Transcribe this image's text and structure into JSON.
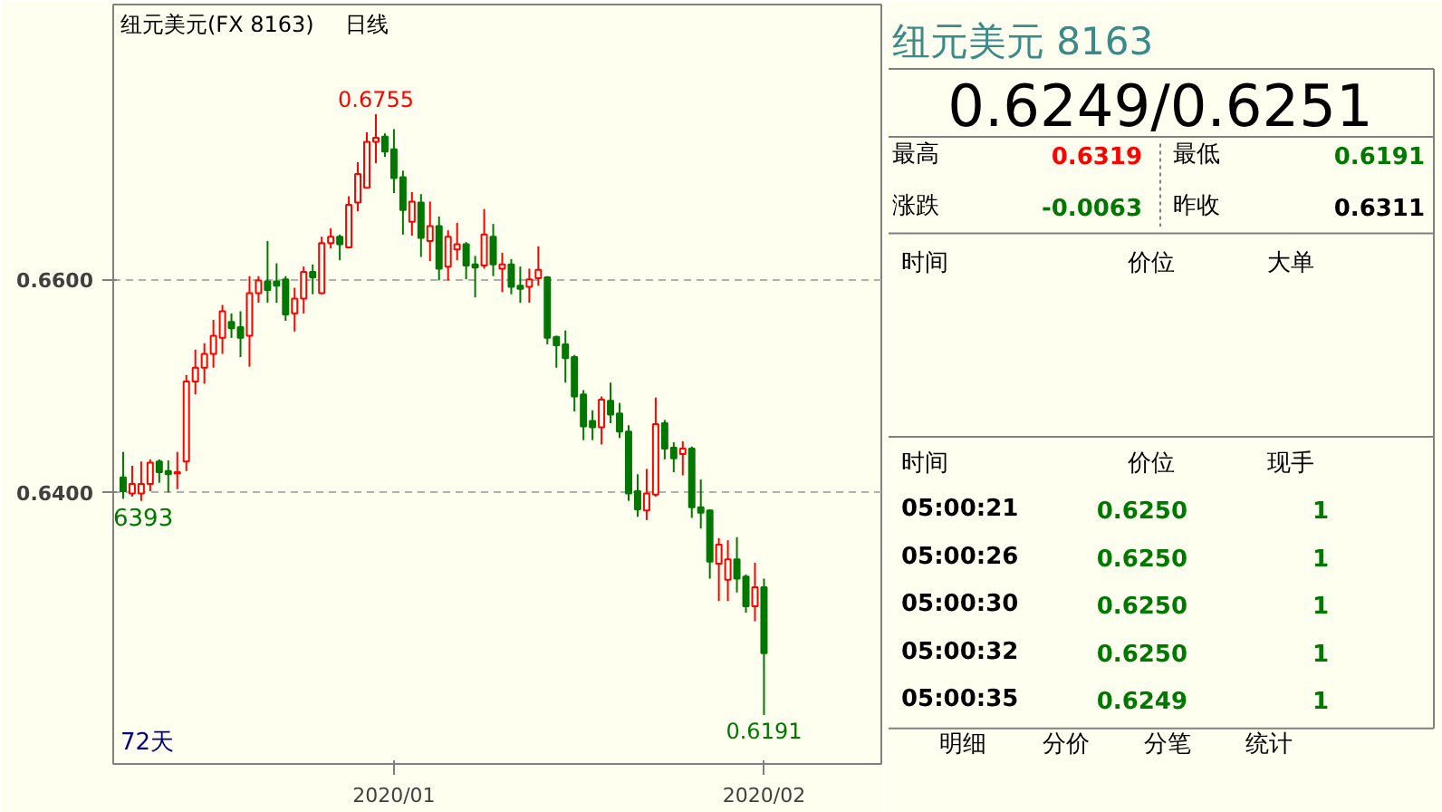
{
  "chart_data": [
    {
      "type": "candlestick",
      "title": "纽元美元(FX 8163)",
      "subtitle": "日线",
      "categories": [
        null,
        null,
        null,
        null,
        null,
        null,
        null,
        null,
        null,
        null,
        null,
        null,
        null,
        null,
        null,
        null,
        null,
        null,
        null,
        null,
        null,
        null,
        null,
        null,
        null,
        null,
        null,
        null,
        null,
        null,
        "2020/01",
        null,
        null,
        null,
        null,
        null,
        null,
        null,
        null,
        null,
        null,
        null,
        null,
        null,
        null,
        null,
        null,
        null,
        null,
        null,
        null,
        null,
        null,
        null,
        null,
        null,
        null,
        null,
        null,
        null,
        null,
        null,
        null,
        null,
        null,
        null,
        null,
        null,
        null,
        null,
        null,
        "2020/02"
      ],
      "ohlc": [
        [
          0.6414,
          0.6438,
          0.6394,
          0.6401
        ],
        [
          0.6399,
          0.6425,
          0.6396,
          0.6408
        ],
        [
          0.6399,
          0.6429,
          0.6392,
          0.6408
        ],
        [
          0.6408,
          0.6431,
          0.6401,
          0.6428
        ],
        [
          0.6429,
          0.6431,
          0.6409,
          0.6419
        ],
        [
          0.642,
          0.643,
          0.64,
          0.6417
        ],
        [
          0.6418,
          0.6438,
          0.6403,
          0.6419
        ],
        [
          0.6429,
          0.651,
          0.642,
          0.6504
        ],
        [
          0.6504,
          0.6534,
          0.6492,
          0.6517
        ],
        [
          0.6517,
          0.654,
          0.6502,
          0.653
        ],
        [
          0.653,
          0.6562,
          0.6517,
          0.6547
        ],
        [
          0.6545,
          0.6576,
          0.653,
          0.657
        ],
        [
          0.656,
          0.6568,
          0.6545,
          0.6554
        ],
        [
          0.6555,
          0.657,
          0.6527,
          0.6545
        ],
        [
          0.6547,
          0.6603,
          0.6518,
          0.6587
        ],
        [
          0.6587,
          0.6603,
          0.6578,
          0.6599
        ],
        [
          0.6598,
          0.6636,
          0.6578,
          0.659
        ],
        [
          0.6598,
          0.6615,
          0.6578,
          0.6594
        ],
        [
          0.66,
          0.6603,
          0.6561,
          0.6567
        ],
        [
          0.6568,
          0.6592,
          0.6551,
          0.6582
        ],
        [
          0.6582,
          0.6612,
          0.6568,
          0.6607
        ],
        [
          0.6607,
          0.6614,
          0.6586,
          0.6602
        ],
        [
          0.6587,
          0.664,
          0.6586,
          0.6634
        ],
        [
          0.6634,
          0.6648,
          0.6629,
          0.664
        ],
        [
          0.664,
          0.6642,
          0.6618,
          0.6633
        ],
        [
          0.663,
          0.6678,
          0.6629,
          0.667
        ],
        [
          0.6672,
          0.671,
          0.6664,
          0.6699
        ],
        [
          0.6686,
          0.6738,
          0.6686,
          0.6729
        ],
        [
          0.6729,
          0.6755,
          0.6709,
          0.6733
        ],
        [
          0.6734,
          0.6737,
          0.6715,
          0.672
        ],
        [
          0.6722,
          0.6741,
          0.6681,
          0.6695
        ],
        [
          0.6696,
          0.6702,
          0.6642,
          0.6665
        ],
        [
          0.6654,
          0.6682,
          0.6641,
          0.6673
        ],
        [
          0.6672,
          0.668,
          0.6621,
          0.6639
        ],
        [
          0.6636,
          0.6673,
          0.6617,
          0.665
        ],
        [
          0.665,
          0.6659,
          0.6599,
          0.661
        ],
        [
          0.6612,
          0.6646,
          0.6599,
          0.664
        ],
        [
          0.6628,
          0.6653,
          0.6618,
          0.6633
        ],
        [
          0.6633,
          0.6635,
          0.66,
          0.6613
        ],
        [
          0.6614,
          0.6622,
          0.6583,
          0.6611
        ],
        [
          0.6613,
          0.6666,
          0.661,
          0.6642
        ],
        [
          0.664,
          0.6652,
          0.6603,
          0.6614
        ],
        [
          0.661,
          0.6625,
          0.6588,
          0.6614
        ],
        [
          0.6614,
          0.6619,
          0.6586,
          0.6593
        ],
        [
          0.6594,
          0.6612,
          0.6578,
          0.6591
        ],
        [
          0.6593,
          0.661,
          0.6578,
          0.66
        ],
        [
          0.6601,
          0.6631,
          0.6594,
          0.6609
        ],
        [
          0.6602,
          0.6603,
          0.6539,
          0.6545
        ],
        [
          0.6546,
          0.6547,
          0.6517,
          0.6538
        ],
        [
          0.6539,
          0.6552,
          0.6503,
          0.6526
        ],
        [
          0.6527,
          0.6529,
          0.6476,
          0.649
        ],
        [
          0.6492,
          0.6496,
          0.6449,
          0.6462
        ],
        [
          0.6467,
          0.6477,
          0.6449,
          0.6461
        ],
        [
          0.6461,
          0.649,
          0.6445,
          0.6487
        ],
        [
          0.6486,
          0.6503,
          0.6465,
          0.6473
        ],
        [
          0.6474,
          0.6484,
          0.6451,
          0.6457
        ],
        [
          0.6457,
          0.6463,
          0.6392,
          0.6399
        ],
        [
          0.6401,
          0.6417,
          0.6377,
          0.6384
        ],
        [
          0.6383,
          0.6422,
          0.6374,
          0.6399
        ],
        [
          0.6398,
          0.6489,
          0.6396,
          0.6464
        ],
        [
          0.6465,
          0.6468,
          0.6431,
          0.6441
        ],
        [
          0.6442,
          0.6447,
          0.6419,
          0.6432
        ],
        [
          0.6436,
          0.6448,
          0.6416,
          0.6441
        ],
        [
          0.6441,
          0.6443,
          0.6376,
          0.6386
        ],
        [
          0.6386,
          0.6412,
          0.6366,
          0.6381
        ],
        [
          0.6383,
          0.6384,
          0.6319,
          0.6335
        ],
        [
          0.6333,
          0.6357,
          0.6298,
          0.6351
        ],
        [
          0.6318,
          0.6355,
          0.6298,
          0.6337
        ],
        [
          0.6337,
          0.6358,
          0.6306,
          0.6319
        ],
        [
          0.6321,
          0.6323,
          0.6287,
          0.6293
        ],
        [
          0.6293,
          0.6334,
          0.6279,
          0.6311
        ],
        [
          0.6311,
          0.6319,
          0.6191,
          0.6249
        ]
      ],
      "ylim": [
        0.6145,
        0.6858
      ],
      "yticks": [
        {
          "value": 0.64,
          "label": "0.6400"
        },
        {
          "value": 0.66,
          "label": "0.6600"
        }
      ],
      "grid": "y",
      "annotations": [
        {
          "text": "0.6755",
          "y": 0.6755
        },
        {
          "text": "0.6191",
          "y": 0.6191
        },
        {
          "text": "6393",
          "y": 0.6393
        },
        "72天"
      ]
    },
    {
      "type": "other",
      "annotations": [
        "纽元美元  8163",
        "0.6249/0.6251",
        "最高",
        "0.6319",
        "最低",
        "0.6191",
        "涨跌",
        "-0.0063",
        "昨收",
        "0.6311",
        "时间",
        "价位",
        "大单",
        "时间",
        "价位",
        "现手",
        "05:00:21",
        "0.6250",
        "1",
        "05:00:26",
        "0.6250",
        "1",
        "05:00:30",
        "0.6250",
        "1",
        "05:00:32",
        "0.6250",
        "1",
        "05:00:35",
        "0.6249",
        "1",
        "明细",
        "分价",
        "分笔",
        "统计"
      ]
    }
  ]
}
